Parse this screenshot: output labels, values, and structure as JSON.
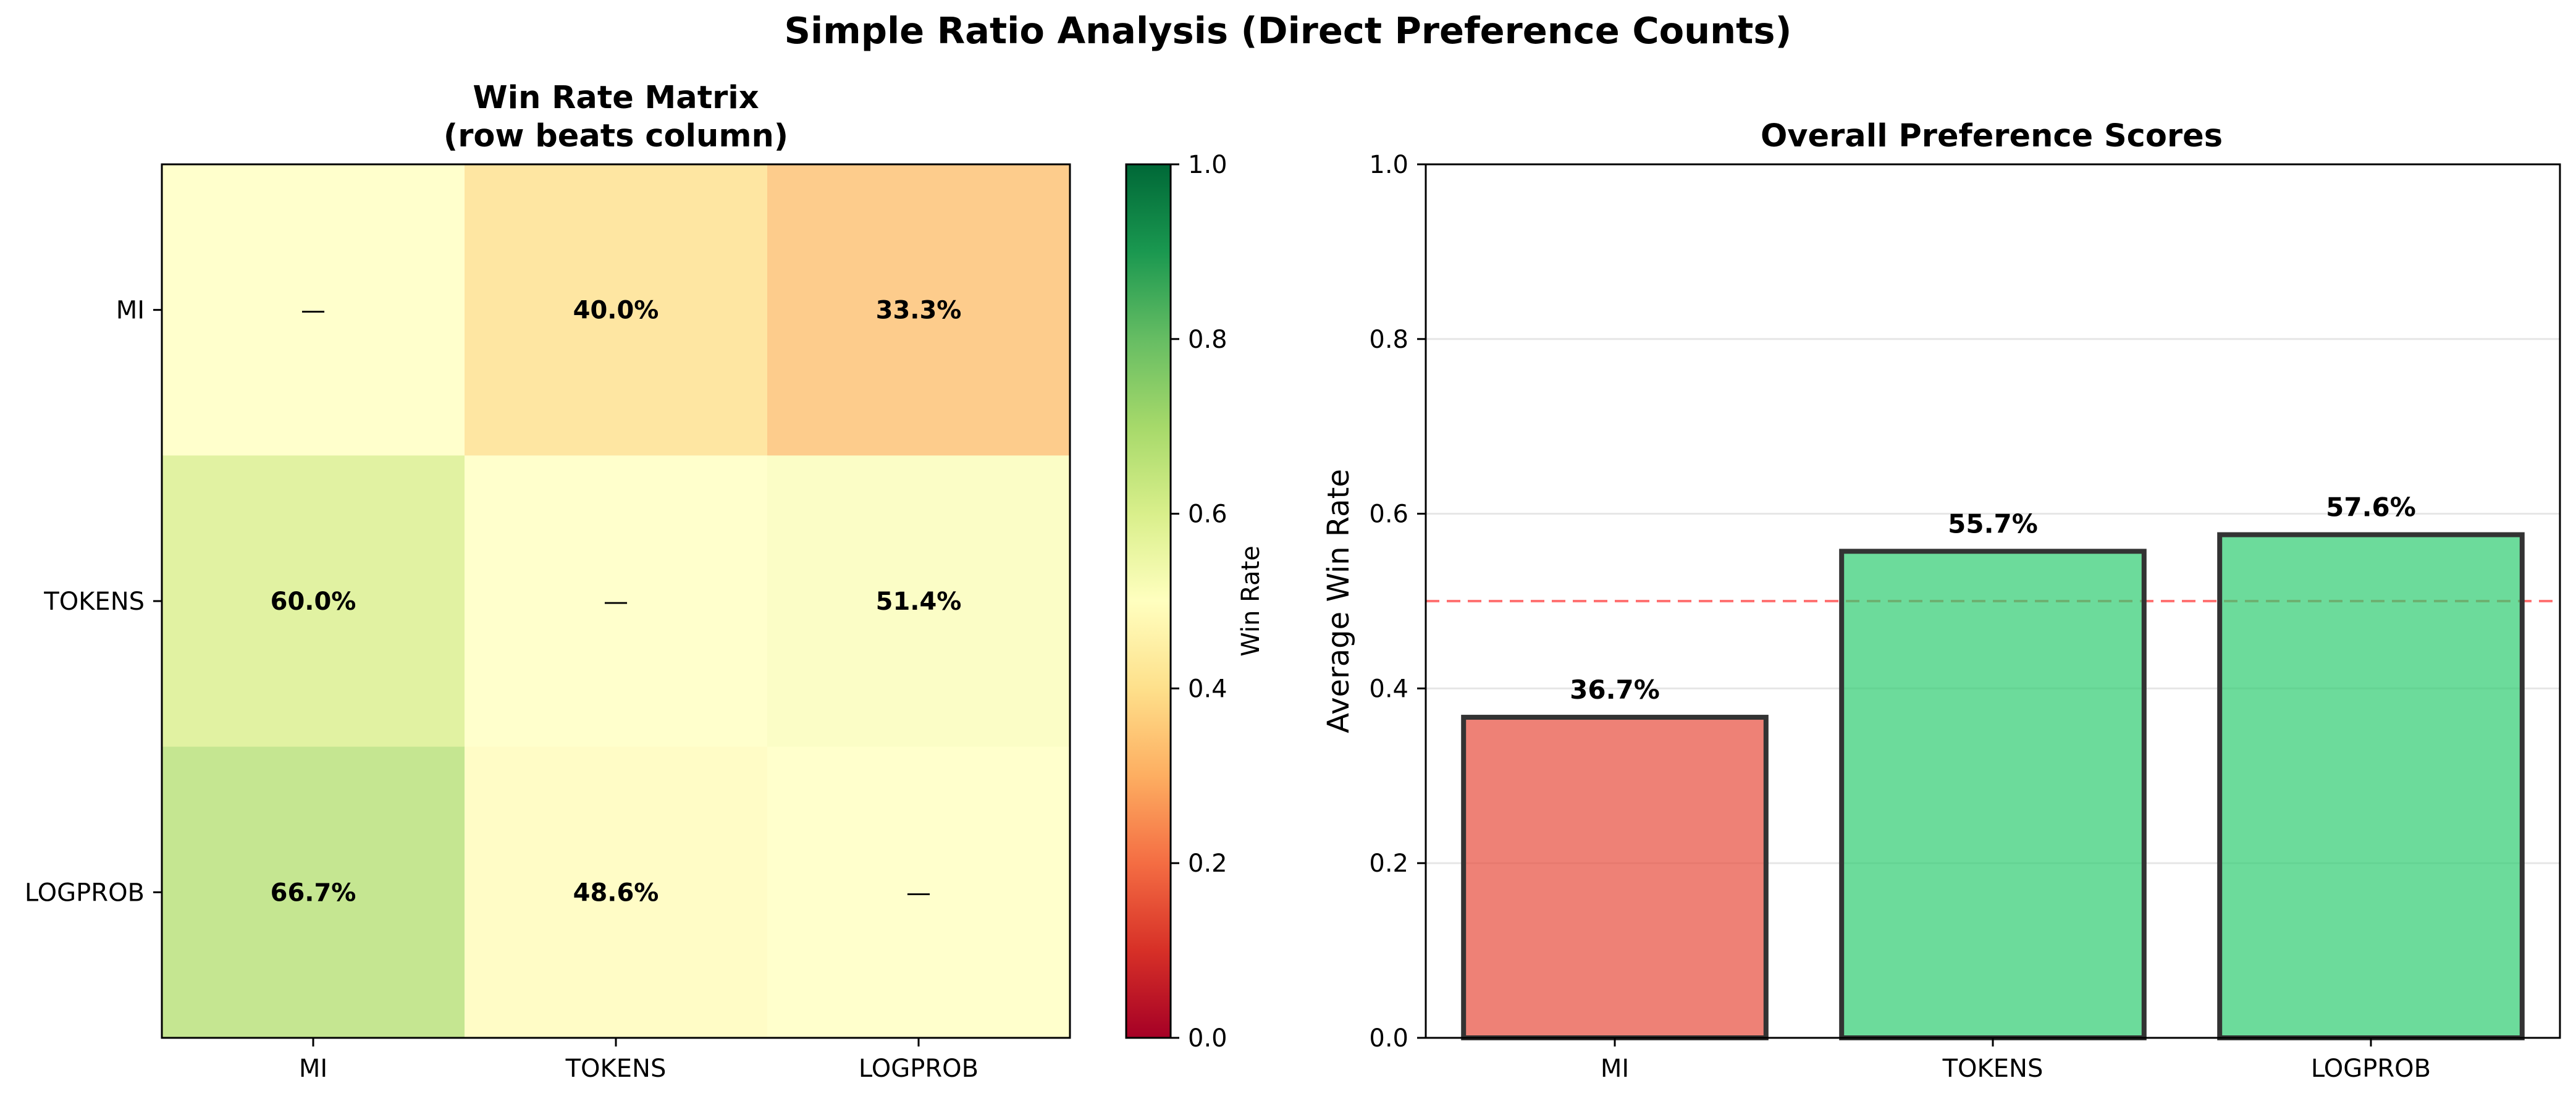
{
  "suptitle": "Simple Ratio Analysis (Direct Preference Counts)",
  "chart_data": [
    {
      "type": "heatmap",
      "title_line1": "Win Rate Matrix",
      "title_line2": "(row beats column)",
      "rows": [
        "MI",
        "TOKENS",
        "LOGPROB"
      ],
      "columns": [
        "MI",
        "TOKENS",
        "LOGPROB"
      ],
      "values": [
        [
          0.5,
          0.4,
          0.333
        ],
        [
          0.6,
          0.5,
          0.514
        ],
        [
          0.667,
          0.486,
          0.5
        ]
      ],
      "cell_labels": [
        [
          "—",
          "40.0%",
          "33.3%"
        ],
        [
          "60.0%",
          "—",
          "51.4%"
        ],
        [
          "66.7%",
          "48.6%",
          "—"
        ]
      ],
      "colorbar": {
        "label": "Win Rate",
        "range": [
          0.0,
          1.0
        ],
        "ticks": [
          "0.0",
          "0.2",
          "0.4",
          "0.6",
          "0.8",
          "1.0"
        ],
        "colormap": "RdYlGn"
      }
    },
    {
      "type": "bar",
      "title": "Overall Preference Scores",
      "categories": [
        "MI",
        "TOKENS",
        "LOGPROB"
      ],
      "values": [
        0.367,
        0.557,
        0.576
      ],
      "value_labels": [
        "36.7%",
        "55.7%",
        "57.6%"
      ],
      "ylabel": "Average Win Rate",
      "ylim": [
        0.0,
        1.0
      ],
      "yticks": [
        "0.0",
        "0.2",
        "0.4",
        "0.6",
        "0.8",
        "1.0"
      ],
      "reference_line": 0.5,
      "grid": "horizontal",
      "colors": {
        "below": "#e74c3c",
        "above": "#2ecc71",
        "edge": "#333333",
        "reference": "#ff0000"
      }
    }
  ]
}
